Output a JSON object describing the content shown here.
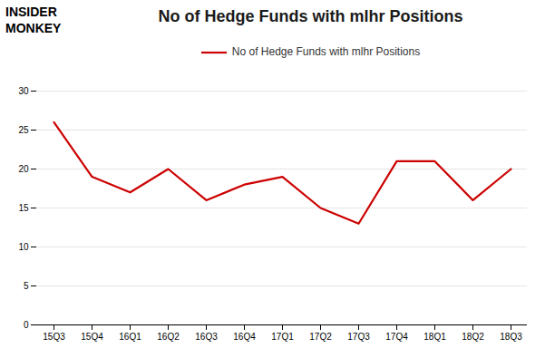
{
  "chart_data": {
    "type": "line",
    "title": "No of Hedge Funds with mlhr Positions",
    "annotations": [
      "INSIDER",
      "MONKEY"
    ],
    "categories": [
      "15Q3",
      "15Q4",
      "16Q1",
      "16Q2",
      "16Q3",
      "16Q4",
      "17Q1",
      "17Q2",
      "17Q3",
      "17Q4",
      "18Q1",
      "18Q2",
      "18Q3"
    ],
    "series": [
      {
        "name": "No of Hedge Funds with mlhr Positions",
        "color": "#cc0000",
        "values": [
          26,
          19,
          17,
          20,
          16,
          18,
          19,
          15,
          13,
          21,
          21,
          16,
          20
        ]
      }
    ],
    "ylim": [
      0,
      30
    ],
    "yticks": [
      0,
      5,
      10,
      15,
      20,
      25,
      30
    ],
    "grid": true,
    "legend": "top"
  }
}
